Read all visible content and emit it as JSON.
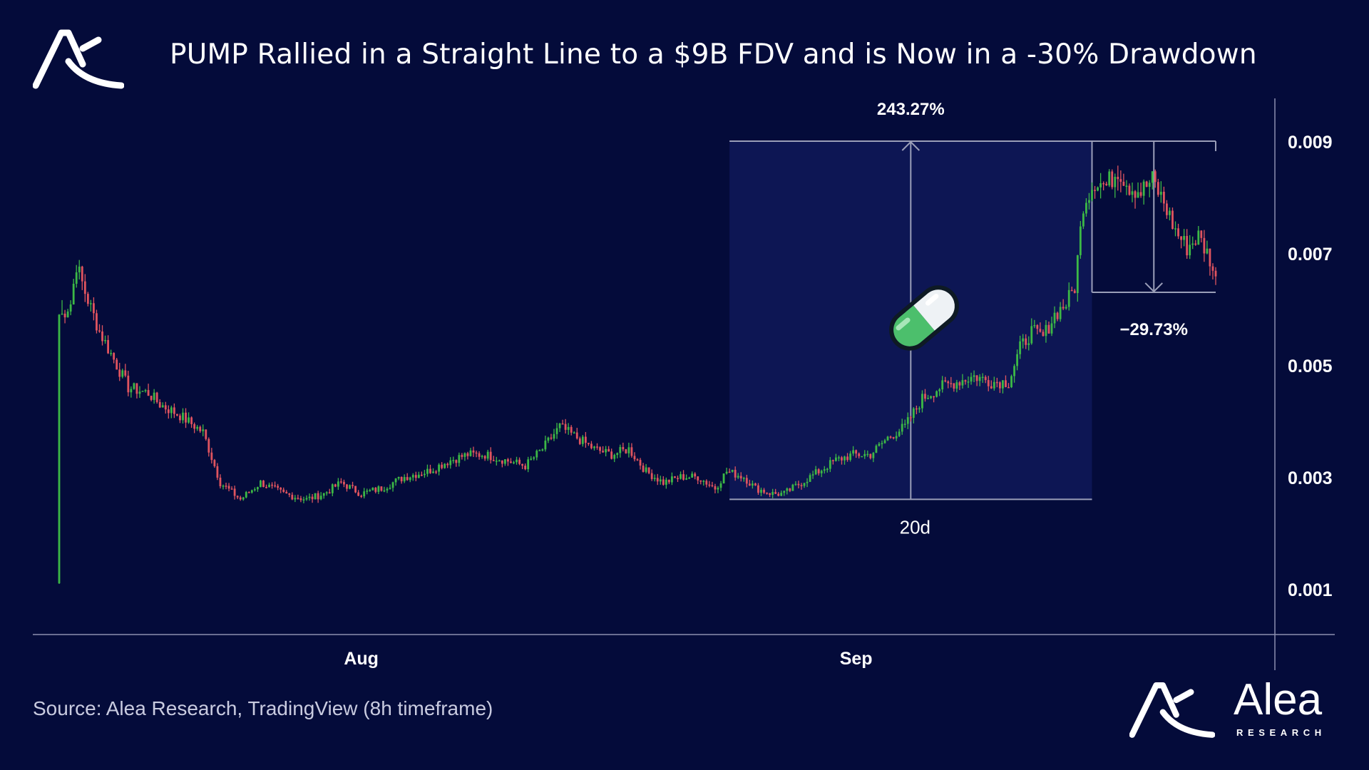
{
  "title": "PUMP Rallied in a Straight Line to a $9B FDV and is Now in a -30% Drawdown",
  "source": "Source: Alea Research, TradingView (8h timeframe)",
  "brand": {
    "name": "Alea",
    "sub": "RESEARCH"
  },
  "colors": {
    "background": "#040b3a",
    "up": "#3cb846",
    "down": "#e0545f",
    "axis": "#8b8fb0",
    "measure_box": "#0d1654",
    "measure_line": "#9a9eb8",
    "pill_green": "#48b86a"
  },
  "chart_data": {
    "type": "candlestick",
    "timeframe": "8h",
    "y_ticks": [
      "0.009",
      "0.007",
      "0.005",
      "0.003",
      "0.001"
    ],
    "y_tick_values": [
      0.009,
      0.007,
      0.005,
      0.003,
      0.001
    ],
    "x_ticks": [
      "Aug",
      "Sep"
    ],
    "x_tick_bar_index": [
      105,
      277
    ],
    "ylim": [
      0.0,
      0.0098
    ],
    "price_anchors": [
      {
        "i": 0,
        "price": 0.0011
      },
      {
        "i": 1,
        "price": 0.0059
      },
      {
        "i": 4,
        "price": 0.0061
      },
      {
        "i": 6,
        "price": 0.0068
      },
      {
        "i": 9,
        "price": 0.0063
      },
      {
        "i": 14,
        "price": 0.0056
      },
      {
        "i": 19,
        "price": 0.0051
      },
      {
        "i": 24,
        "price": 0.0046
      },
      {
        "i": 31,
        "price": 0.0045
      },
      {
        "i": 35,
        "price": 0.0043
      },
      {
        "i": 42,
        "price": 0.0041
      },
      {
        "i": 50,
        "price": 0.0038
      },
      {
        "i": 56,
        "price": 0.0029
      },
      {
        "i": 63,
        "price": 0.0026
      },
      {
        "i": 70,
        "price": 0.0029
      },
      {
        "i": 78,
        "price": 0.0027
      },
      {
        "i": 86,
        "price": 0.0026
      },
      {
        "i": 92,
        "price": 0.0027
      },
      {
        "i": 98,
        "price": 0.0029
      },
      {
        "i": 105,
        "price": 0.0027
      },
      {
        "i": 112,
        "price": 0.0028
      },
      {
        "i": 120,
        "price": 0.003
      },
      {
        "i": 128,
        "price": 0.0031
      },
      {
        "i": 136,
        "price": 0.0033
      },
      {
        "i": 142,
        "price": 0.0034
      },
      {
        "i": 148,
        "price": 0.0034
      },
      {
        "i": 155,
        "price": 0.0033
      },
      {
        "i": 162,
        "price": 0.0032
      },
      {
        "i": 168,
        "price": 0.0035
      },
      {
        "i": 174,
        "price": 0.0039
      },
      {
        "i": 180,
        "price": 0.0037
      },
      {
        "i": 186,
        "price": 0.0035
      },
      {
        "i": 192,
        "price": 0.0034
      },
      {
        "i": 198,
        "price": 0.0035
      },
      {
        "i": 204,
        "price": 0.0031
      },
      {
        "i": 210,
        "price": 0.0029
      },
      {
        "i": 216,
        "price": 0.003
      },
      {
        "i": 222,
        "price": 0.003
      },
      {
        "i": 228,
        "price": 0.0028
      },
      {
        "i": 232,
        "price": 0.0031
      },
      {
        "i": 238,
        "price": 0.003
      },
      {
        "i": 242,
        "price": 0.0028
      },
      {
        "i": 248,
        "price": 0.0027
      },
      {
        "i": 252,
        "price": 0.0027
      },
      {
        "i": 258,
        "price": 0.0029
      },
      {
        "i": 264,
        "price": 0.0031
      },
      {
        "i": 270,
        "price": 0.0033
      },
      {
        "i": 276,
        "price": 0.0034
      },
      {
        "i": 282,
        "price": 0.0034
      },
      {
        "i": 288,
        "price": 0.0037
      },
      {
        "i": 294,
        "price": 0.0039
      },
      {
        "i": 300,
        "price": 0.0044
      },
      {
        "i": 306,
        "price": 0.0046
      },
      {
        "i": 312,
        "price": 0.0047
      },
      {
        "i": 318,
        "price": 0.0048
      },
      {
        "i": 324,
        "price": 0.0047
      },
      {
        "i": 330,
        "price": 0.0047
      },
      {
        "i": 334,
        "price": 0.0053
      },
      {
        "i": 338,
        "price": 0.0056
      },
      {
        "i": 342,
        "price": 0.0055
      },
      {
        "i": 346,
        "price": 0.0059
      },
      {
        "i": 350,
        "price": 0.0061
      },
      {
        "i": 353,
        "price": 0.0064
      },
      {
        "i": 356,
        "price": 0.0079
      },
      {
        "i": 360,
        "price": 0.0083
      },
      {
        "i": 364,
        "price": 0.0082
      },
      {
        "i": 368,
        "price": 0.0085
      },
      {
        "i": 372,
        "price": 0.0082
      },
      {
        "i": 376,
        "price": 0.0081
      },
      {
        "i": 380,
        "price": 0.0083
      },
      {
        "i": 384,
        "price": 0.0079
      },
      {
        "i": 388,
        "price": 0.0074
      },
      {
        "i": 392,
        "price": 0.0071
      },
      {
        "i": 396,
        "price": 0.0073
      },
      {
        "i": 400,
        "price": 0.0069
      },
      {
        "i": 402,
        "price": 0.0065
      }
    ],
    "bar_count": 403,
    "annotations": {
      "rally_pct": "243.27%",
      "rally_duration": "20d",
      "rally_start_bar": 233,
      "rally_end_bar": 359,
      "rally_low": 0.0026,
      "rally_high": 0.009,
      "drawdown_pct": "−29.73%",
      "drawdown_start_bar": 359,
      "drawdown_end_bar": 402,
      "drawdown_low": 0.0063
    }
  }
}
